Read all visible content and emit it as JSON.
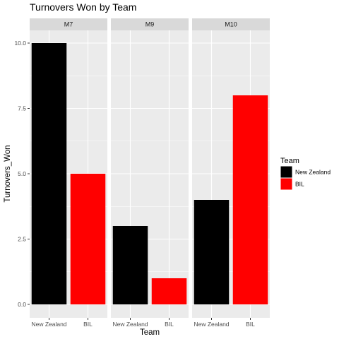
{
  "chart_data": {
    "type": "bar",
    "title": "Turnovers Won  by Team",
    "xlabel": "Team",
    "ylabel": "Turnovers_Won",
    "ylim": [
      0,
      10
    ],
    "yticks": [
      "0.0",
      "2.5",
      "5.0",
      "7.5",
      "10.0"
    ],
    "ytick_values": [
      0,
      2.5,
      5,
      7.5,
      10
    ],
    "categories": [
      "New Zealand",
      "BIL"
    ],
    "facets": [
      {
        "label": "M7",
        "values": [
          10,
          5
        ]
      },
      {
        "label": "M9",
        "values": [
          3,
          1
        ]
      },
      {
        "label": "M10",
        "values": [
          4,
          8
        ]
      }
    ],
    "legend": {
      "title": "Team",
      "placement": "right",
      "entries": [
        {
          "label": "New Zealand",
          "color": "#000000"
        },
        {
          "label": "BIL",
          "color": "#ff0000"
        }
      ]
    },
    "colors": {
      "panel_bg": "#ebebeb",
      "strip_bg": "#d9d9d9",
      "grid": "#ffffff"
    },
    "grid": true
  }
}
